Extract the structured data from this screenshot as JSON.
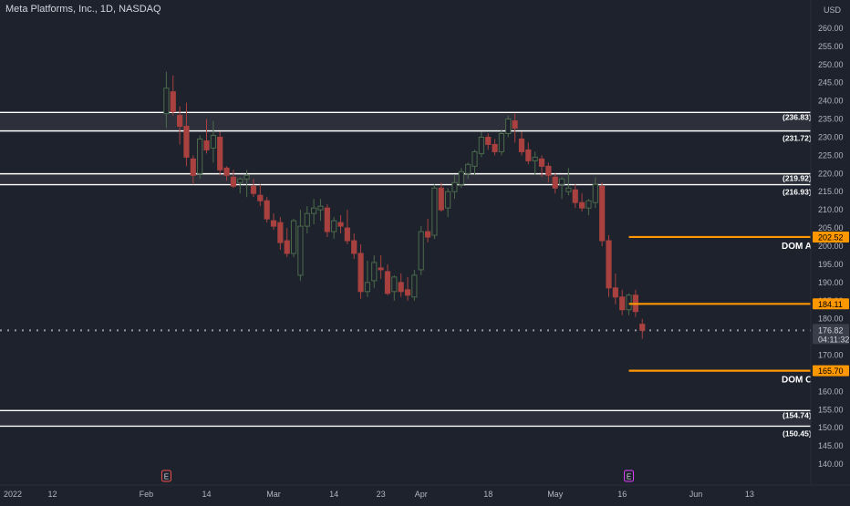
{
  "header": {
    "symbol": "Meta Platforms, Inc., 1D, NASDAQ",
    "currency": "USD"
  },
  "colors": {
    "background": "#1e222d",
    "up": "#26a69a",
    "down": "#ef5350",
    "up_candle": "#4b6b4a",
    "down_candle": "#a8413f",
    "zone_fill": "#3a3d46",
    "zone_line": "#ffffff",
    "level_line": "#ff9800",
    "price_tag": "#363a45",
    "grid_text": "#b2b5be"
  },
  "chart_data": {
    "type": "candlestick",
    "title": "Meta Platforms, Inc., 1D, NASDAQ",
    "ylim": [
      137,
      263
    ],
    "y_ticks": [
      140,
      145,
      150,
      155,
      160,
      165,
      170,
      175,
      180,
      185,
      190,
      195,
      200,
      205,
      210,
      215,
      220,
      225,
      230,
      235,
      240,
      245,
      250,
      255,
      260
    ],
    "x_ticks": [
      {
        "label": "2022",
        "index": 0
      },
      {
        "label": "12",
        "index": 7
      },
      {
        "label": "Feb",
        "index": 21
      },
      {
        "label": "14",
        "index": 30
      },
      {
        "label": "Mar",
        "index": 40
      },
      {
        "label": "14",
        "index": 49
      },
      {
        "label": "23",
        "index": 56
      },
      {
        "label": "Apr",
        "index": 62
      },
      {
        "label": "18",
        "index": 72
      },
      {
        "label": "May",
        "index": 82
      },
      {
        "label": "16",
        "index": 92
      },
      {
        "label": "Jun",
        "index": 103
      },
      {
        "label": "13",
        "index": 111
      }
    ],
    "candles": [
      [
        24,
        236.5,
        248.0,
        232.5,
        243.5
      ],
      [
        25,
        242.5,
        247.0,
        236.0,
        237.0
      ],
      [
        26,
        236.0,
        238.5,
        228.0,
        233.0
      ],
      [
        27,
        233.0,
        239.5,
        222.0,
        224.5
      ],
      [
        28,
        224.0,
        225.0,
        217.0,
        219.5
      ],
      [
        29,
        220.0,
        230.5,
        218.5,
        229.5
      ],
      [
        30,
        229.0,
        235.0,
        225.5,
        226.5
      ],
      [
        31,
        227.0,
        234.5,
        223.0,
        230.5
      ],
      [
        32,
        230.0,
        231.5,
        219.5,
        221.0
      ],
      [
        33,
        221.5,
        222.0,
        218.0,
        219.5
      ],
      [
        34,
        219.0,
        221.0,
        216.0,
        216.5
      ],
      [
        35,
        217.5,
        219.0,
        214.5,
        218.5
      ],
      [
        36,
        218.5,
        221.0,
        213.5,
        219.5
      ],
      [
        37,
        216.5,
        218.5,
        213.5,
        214.5
      ],
      [
        38,
        214.0,
        217.0,
        211.0,
        212.5
      ],
      [
        39,
        212.5,
        213.5,
        206.5,
        207.5
      ],
      [
        40,
        207.0,
        209.0,
        204.5,
        205.5
      ],
      [
        41,
        206.5,
        208.0,
        199.0,
        201.0
      ],
      [
        42,
        201.5,
        205.0,
        197.0,
        198.0
      ],
      [
        43,
        198.0,
        207.5,
        197.0,
        207.0
      ],
      [
        44,
        192.0,
        210.0,
        190.5,
        205.5
      ],
      [
        45,
        205.5,
        211.0,
        203.5,
        209.0
      ],
      [
        46,
        209.0,
        213.0,
        206.0,
        210.5
      ],
      [
        47,
        210.0,
        213.0,
        207.0,
        211.0
      ],
      [
        48,
        210.5,
        211.5,
        202.5,
        204.0
      ],
      [
        49,
        204.0,
        208.0,
        202.0,
        207.0
      ],
      [
        50,
        206.5,
        208.5,
        203.5,
        205.5
      ],
      [
        51,
        205.0,
        210.0,
        200.5,
        201.5
      ],
      [
        52,
        201.5,
        203.5,
        196.5,
        198.0
      ],
      [
        53,
        198.0,
        200.5,
        185.5,
        187.5
      ],
      [
        54,
        187.5,
        196.0,
        186.0,
        190.0
      ],
      [
        55,
        190.5,
        197.5,
        188.5,
        195.5
      ],
      [
        56,
        194.0,
        197.5,
        191.0,
        193.5
      ],
      [
        57,
        193.0,
        195.0,
        186.5,
        187.0
      ],
      [
        58,
        187.5,
        192.0,
        185.0,
        191.5
      ],
      [
        59,
        190.0,
        192.5,
        186.0,
        187.5
      ],
      [
        60,
        188.0,
        191.5,
        185.0,
        186.5
      ],
      [
        61,
        186.0,
        193.5,
        185.0,
        192.0
      ],
      [
        62,
        193.5,
        205.5,
        192.0,
        204.0
      ],
      [
        63,
        204.0,
        207.5,
        201.0,
        202.5
      ],
      [
        64,
        203.0,
        217.0,
        202.0,
        216.0
      ],
      [
        65,
        216.0,
        217.5,
        209.5,
        210.0
      ],
      [
        66,
        210.5,
        216.0,
        208.0,
        215.0
      ],
      [
        67,
        215.0,
        219.5,
        213.0,
        217.5
      ],
      [
        68,
        217.0,
        221.5,
        216.0,
        220.5
      ],
      [
        69,
        220.0,
        223.0,
        218.5,
        222.5
      ],
      [
        70,
        222.0,
        226.5,
        219.5,
        226.0
      ],
      [
        71,
        225.5,
        231.5,
        224.5,
        230.0
      ],
      [
        72,
        230.0,
        231.0,
        226.5,
        228.0
      ],
      [
        73,
        228.0,
        229.5,
        225.0,
        226.0
      ],
      [
        74,
        226.0,
        232.0,
        225.0,
        231.0
      ],
      [
        75,
        231.0,
        236.0,
        230.0,
        235.0
      ],
      [
        76,
        234.5,
        236.5,
        228.5,
        232.5
      ],
      [
        77,
        229.5,
        231.5,
        225.0,
        226.0
      ],
      [
        78,
        226.5,
        228.5,
        222.5,
        223.5
      ],
      [
        79,
        223.5,
        226.0,
        219.5,
        224.5
      ],
      [
        80,
        224.0,
        225.0,
        219.0,
        222.0
      ],
      [
        81,
        222.0,
        223.0,
        217.5,
        219.5
      ],
      [
        82,
        219.0,
        220.0,
        214.5,
        216.0
      ],
      [
        83,
        217.0,
        219.0,
        213.0,
        218.5
      ],
      [
        84,
        215.0,
        221.5,
        214.0,
        216.0
      ],
      [
        85,
        215.5,
        217.0,
        210.5,
        212.0
      ],
      [
        86,
        212.0,
        214.5,
        209.5,
        210.5
      ],
      [
        87,
        210.5,
        213.0,
        208.5,
        212.5
      ],
      [
        88,
        212.0,
        219.0,
        210.5,
        217.0
      ],
      [
        89,
        216.5,
        217.5,
        200.0,
        201.5
      ],
      [
        90,
        201.5,
        203.0,
        186.0,
        188.5
      ],
      [
        91,
        188.5,
        192.5,
        184.0,
        186.0
      ],
      [
        92,
        186.0,
        188.0,
        181.0,
        182.5
      ],
      [
        93,
        182.5,
        187.0,
        181.0,
        186.5
      ],
      [
        94,
        186.5,
        188.0,
        180.5,
        182.0
      ],
      [
        95,
        178.5,
        180.0,
        174.5,
        176.8
      ]
    ],
    "zones": [
      {
        "top": 236.83,
        "bottom": 231.72,
        "top_label": "(236.83)",
        "bottom_label": "(231.72)"
      },
      {
        "top": 219.92,
        "bottom": 216.93,
        "top_label": "(219.92)",
        "bottom_label": "(216.93)"
      },
      {
        "top": 154.74,
        "bottom": 150.45,
        "top_label": "(154.74)",
        "bottom_label": "(150.45)"
      }
    ],
    "levels": [
      {
        "value": 202.52,
        "label": "202.52",
        "name": "DOM A"
      },
      {
        "value": 184.11,
        "label": "184.11",
        "name": ""
      },
      {
        "value": 165.7,
        "label": "165.70",
        "name": "DOM C"
      }
    ],
    "current_price": {
      "value": 176.82,
      "label": "176.82",
      "countdown": "04:11:32"
    },
    "events": [
      {
        "index": 24,
        "label": "E"
      },
      {
        "index": 93,
        "label": "E"
      }
    ]
  }
}
